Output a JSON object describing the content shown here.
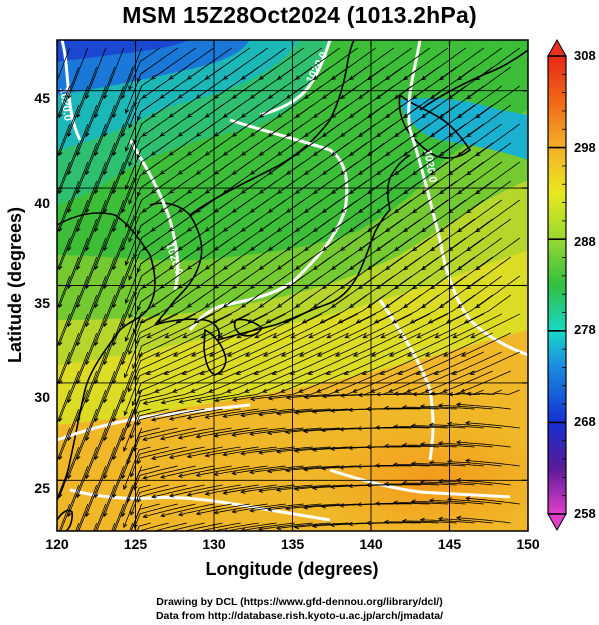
{
  "title": "MSM 15Z28Oct2024 (1013.2hPa)",
  "xlabel": "Longitude (degrees)",
  "ylabel": "Latitude  (degrees)",
  "x_ticks": [
    "120",
    "125",
    "130",
    "135",
    "140",
    "145",
    "150"
  ],
  "y_ticks": [
    "25",
    "30",
    "35",
    "40",
    "45"
  ],
  "colorbar_ticks": [
    "308",
    "298",
    "288",
    "278",
    "268",
    "258"
  ],
  "contour_labels": [
    "1020.0",
    "1020.0",
    "1020.0",
    "1020.0"
  ],
  "credit_line1": "Drawing by DCL (https://www.gfd-dennou.org/library/dcl/)",
  "credit_line2": "Data from http://database.rish.kyoto-u.ac.jp/arch/jmadata/",
  "map_extent": {
    "lon": [
      120,
      150
    ],
    "lat": [
      22.4,
      47.6
    ]
  },
  "colorbar_range": [
    258,
    308
  ],
  "colors": {
    "cold": "#1a3ad8",
    "cool": "#16d8c8",
    "mild": "#2ebf34",
    "warm": "#e8e020",
    "hot": "#f09818",
    "contour": "#ffffff",
    "vector": "#000000"
  }
}
